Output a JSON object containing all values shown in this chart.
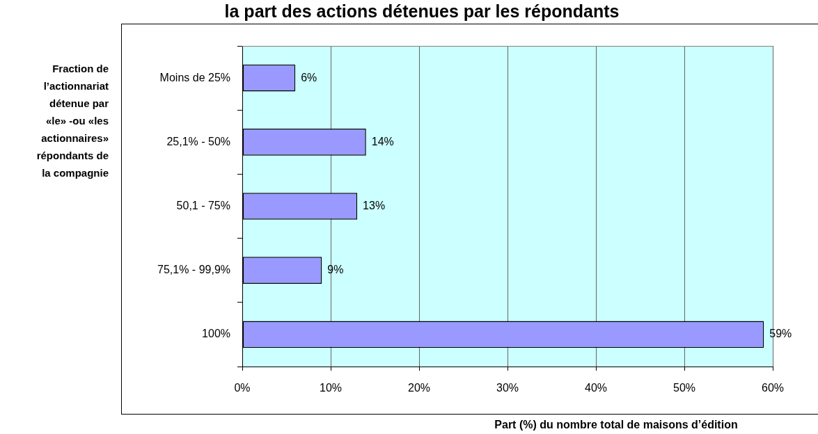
{
  "chart_data": {
    "type": "bar",
    "orientation": "horizontal",
    "title": "la part des actions détenues par les répondants",
    "ylabel": "Fraction de\nl’actionnariat\ndétenue par\n«le» -ou «les\nactionnaires»\nrépondants de\nla compagnie",
    "xlabel": "Part (%) du nombre total de maisons d’édition",
    "categories": [
      "Moins de 25%",
      "25,1% - 50%",
      "50,1 - 75%",
      "75,1% - 99,9%",
      "100%"
    ],
    "values": [
      6,
      14,
      13,
      9,
      59
    ],
    "value_labels": [
      "6%",
      "14%",
      "13%",
      "9%",
      "59%"
    ],
    "color": "#9999ff",
    "xlim": [
      0,
      60
    ],
    "xticks": [
      {
        "value": 0,
        "label": "0%"
      },
      {
        "value": 10,
        "label": "10%"
      },
      {
        "value": 20,
        "label": "20%"
      },
      {
        "value": 30,
        "label": "30%"
      },
      {
        "value": 40,
        "label": "40%"
      },
      {
        "value": 50,
        "label": "50%"
      },
      {
        "value": 60,
        "label": "60%"
      }
    ],
    "grid": "x"
  }
}
